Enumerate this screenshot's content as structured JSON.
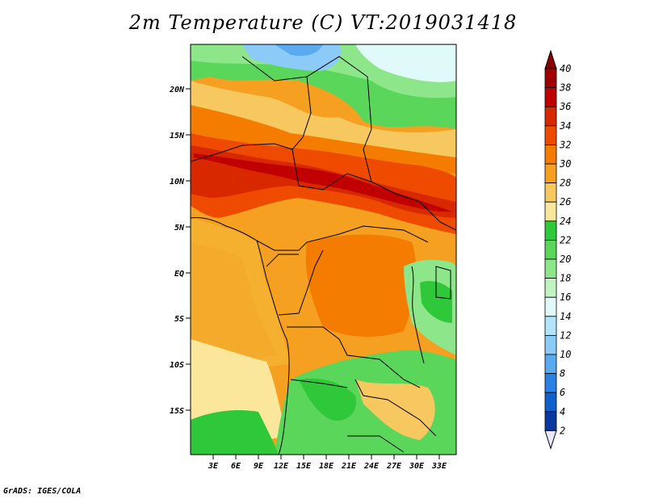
{
  "title": "2m Temperature (C) VT:2019031418",
  "credit": "GrADS: IGES/COLA",
  "map": {
    "lat_ticks": [
      "20N",
      "15N",
      "10N",
      "5N",
      "EQ",
      "5S",
      "10S",
      "15S"
    ],
    "lon_ticks": [
      "3E",
      "6E",
      "9E",
      "12E",
      "15E",
      "18E",
      "21E",
      "24E",
      "27E",
      "30E",
      "33E"
    ]
  },
  "colorbar": {
    "labels": [
      "40",
      "38",
      "36",
      "34",
      "32",
      "30",
      "28",
      "26",
      "24",
      "22",
      "20",
      "18",
      "16",
      "14",
      "12",
      "10",
      "8",
      "6",
      "4",
      "2"
    ],
    "colors": [
      "#a00000",
      "#c00000",
      "#d82800",
      "#ee4a00",
      "#f47c00",
      "#f5a020",
      "#f8c860",
      "#fbe79c",
      "#2fc83a",
      "#5ad65a",
      "#8ee68a",
      "#c0f4c0",
      "#e0fafa",
      "#b4e4fa",
      "#8ccaf8",
      "#5aaaf0",
      "#2a80e4",
      "#1060cc",
      "#0838a0",
      "#0a0a70"
    ],
    "top_arrow_color": "#8a0000",
    "bottom_arrow_color": "#e8e8ff"
  }
}
